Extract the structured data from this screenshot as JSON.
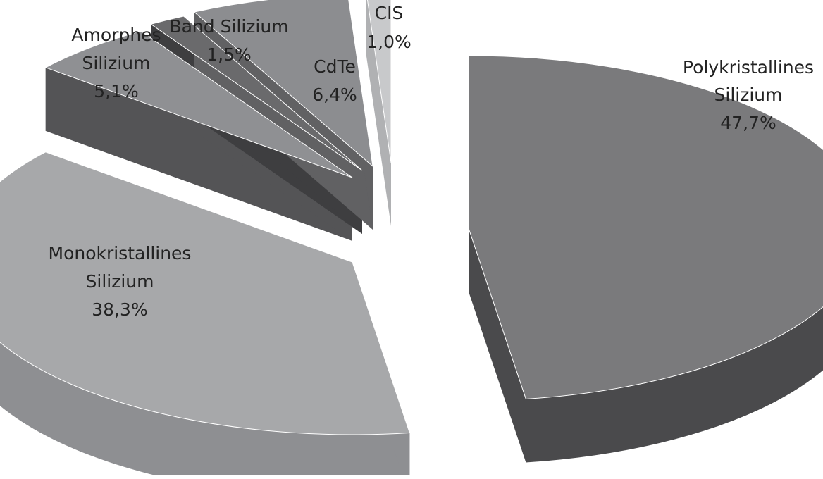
{
  "chart_data": {
    "type": "pie",
    "title": "",
    "slices": [
      {
        "name_lines": [
          "Polykristallines",
          "Silizium"
        ],
        "value": 47.7,
        "value_label": "47,7%",
        "color": "#7a7a7c",
        "side_color": "#4a4a4c"
      },
      {
        "name_lines": [
          "Monokristallines",
          "Silizium"
        ],
        "value": 38.3,
        "value_label": "38,3%",
        "color": "#a7a8aa",
        "side_color": "#8e8f92"
      },
      {
        "name_lines": [
          "Amorphes",
          "Silizium"
        ],
        "value": 5.1,
        "value_label": "5,1%",
        "color": "#8f9093",
        "side_color": "#545456"
      },
      {
        "name_lines": [
          "Band Silizium"
        ],
        "value": 1.5,
        "value_label": "1,5%",
        "color": "#6a6a6c",
        "side_color": "#3e3e40"
      },
      {
        "name_lines": [
          "CdTe"
        ],
        "value": 6.4,
        "value_label": "6,4%",
        "color": "#8c8d90",
        "side_color": "#616163"
      },
      {
        "name_lines": [
          "CIS"
        ],
        "value": 1.0,
        "value_label": "1,0%",
        "color": "#c8c9cb",
        "side_color": "#b0b1b3"
      }
    ],
    "style": "3d-exploded-pie",
    "legend": "none"
  }
}
